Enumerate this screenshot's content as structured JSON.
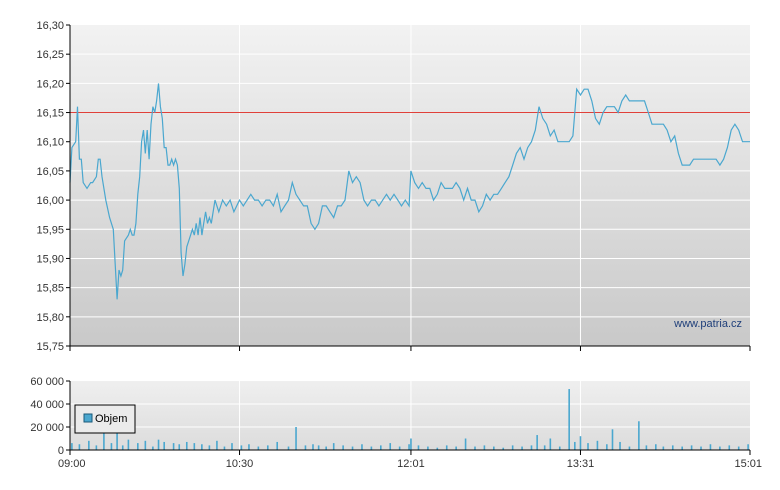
{
  "chart_data": [
    {
      "type": "line",
      "panel": "price",
      "ylim": [
        15.75,
        16.3
      ],
      "y_ticks": [
        "16,30",
        "16,25",
        "16,20",
        "16,15",
        "16,10",
        "16,05",
        "16,00",
        "15,95",
        "15,90",
        "15,85",
        "15,80",
        "15,75"
      ],
      "y_tick_values": [
        16.3,
        16.25,
        16.2,
        16.15,
        16.1,
        16.05,
        16.0,
        15.95,
        15.9,
        15.85,
        15.8,
        15.75
      ],
      "reference_line": {
        "value": 16.15,
        "color": "#e0403a"
      },
      "watermark": "www.patria.cz",
      "series": [
        {
          "color": "#4aa7cf",
          "points": [
            [
              "09:00",
              16.03
            ],
            [
              "09:01",
              16.09
            ],
            [
              "09:03",
              16.1
            ],
            [
              "09:04",
              16.16
            ],
            [
              "09:05",
              16.07
            ],
            [
              "09:06",
              16.07
            ],
            [
              "09:07",
              16.03
            ],
            [
              "09:09",
              16.02
            ],
            [
              "09:11",
              16.03
            ],
            [
              "09:12",
              16.03
            ],
            [
              "09:14",
              16.04
            ],
            [
              "09:15",
              16.07
            ],
            [
              "09:16",
              16.07
            ],
            [
              "09:17",
              16.04
            ],
            [
              "09:19",
              16.0
            ],
            [
              "09:21",
              15.97
            ],
            [
              "09:23",
              15.95
            ],
            [
              "09:24",
              15.89
            ],
            [
              "09:25",
              15.83
            ],
            [
              "09:26",
              15.88
            ],
            [
              "09:27",
              15.87
            ],
            [
              "09:28",
              15.88
            ],
            [
              "09:29",
              15.93
            ],
            [
              "09:31",
              15.94
            ],
            [
              "09:32",
              15.95
            ],
            [
              "09:33",
              15.94
            ],
            [
              "09:34",
              15.94
            ],
            [
              "09:35",
              15.96
            ],
            [
              "09:36",
              16.01
            ],
            [
              "09:37",
              16.04
            ],
            [
              "09:38",
              16.1
            ],
            [
              "09:39",
              16.12
            ],
            [
              "09:40",
              16.08
            ],
            [
              "09:41",
              16.12
            ],
            [
              "09:42",
              16.07
            ],
            [
              "09:43",
              16.13
            ],
            [
              "09:44",
              16.16
            ],
            [
              "09:45",
              16.15
            ],
            [
              "09:46",
              16.17
            ],
            [
              "09:47",
              16.2
            ],
            [
              "09:48",
              16.16
            ],
            [
              "09:49",
              16.14
            ],
            [
              "09:50",
              16.09
            ],
            [
              "09:51",
              16.09
            ],
            [
              "09:52",
              16.06
            ],
            [
              "09:53",
              16.06
            ],
            [
              "09:54",
              16.07
            ],
            [
              "09:55",
              16.06
            ],
            [
              "09:56",
              16.07
            ],
            [
              "09:57",
              16.06
            ],
            [
              "09:58",
              16.02
            ],
            [
              "09:59",
              15.91
            ],
            [
              "10:00",
              15.87
            ],
            [
              "10:01",
              15.89
            ],
            [
              "10:02",
              15.92
            ],
            [
              "10:03",
              15.93
            ],
            [
              "10:04",
              15.94
            ],
            [
              "10:05",
              15.95
            ],
            [
              "10:06",
              15.94
            ],
            [
              "10:07",
              15.96
            ],
            [
              "10:08",
              15.94
            ],
            [
              "10:09",
              15.97
            ],
            [
              "10:10",
              15.94
            ],
            [
              "10:11",
              15.96
            ],
            [
              "10:12",
              15.98
            ],
            [
              "10:13",
              15.96
            ],
            [
              "10:14",
              15.97
            ],
            [
              "10:15",
              15.96
            ],
            [
              "10:17",
              16.0
            ],
            [
              "10:19",
              15.98
            ],
            [
              "10:21",
              16.0
            ],
            [
              "10:23",
              15.99
            ],
            [
              "10:25",
              16.0
            ],
            [
              "10:27",
              15.98
            ],
            [
              "10:30",
              16.0
            ],
            [
              "10:32",
              15.99
            ],
            [
              "10:34",
              16.0
            ],
            [
              "10:36",
              16.01
            ],
            [
              "10:38",
              16.0
            ],
            [
              "10:40",
              16.0
            ],
            [
              "10:42",
              15.99
            ],
            [
              "10:44",
              16.0
            ],
            [
              "10:46",
              16.0
            ],
            [
              "10:48",
              15.99
            ],
            [
              "10:50",
              16.01
            ],
            [
              "10:52",
              15.98
            ],
            [
              "10:54",
              15.99
            ],
            [
              "10:56",
              16.0
            ],
            [
              "10:58",
              16.03
            ],
            [
              "11:00",
              16.01
            ],
            [
              "11:02",
              16.0
            ],
            [
              "11:04",
              15.99
            ],
            [
              "11:06",
              15.99
            ],
            [
              "11:08",
              15.96
            ],
            [
              "11:10",
              15.95
            ],
            [
              "11:12",
              15.96
            ],
            [
              "11:14",
              15.99
            ],
            [
              "11:16",
              15.99
            ],
            [
              "11:18",
              15.98
            ],
            [
              "11:20",
              15.97
            ],
            [
              "11:22",
              15.99
            ],
            [
              "11:24",
              15.99
            ],
            [
              "11:26",
              16.0
            ],
            [
              "11:28",
              16.05
            ],
            [
              "11:30",
              16.03
            ],
            [
              "11:32",
              16.04
            ],
            [
              "11:34",
              16.03
            ],
            [
              "11:36",
              16.0
            ],
            [
              "11:38",
              15.99
            ],
            [
              "11:40",
              16.0
            ],
            [
              "11:42",
              16.0
            ],
            [
              "11:44",
              15.99
            ],
            [
              "11:46",
              16.0
            ],
            [
              "11:48",
              16.01
            ],
            [
              "11:50",
              16.0
            ],
            [
              "11:52",
              16.01
            ],
            [
              "11:54",
              16.0
            ],
            [
              "11:56",
              15.99
            ],
            [
              "11:58",
              16.0
            ],
            [
              "12:00",
              15.99
            ],
            [
              "12:01",
              16.05
            ],
            [
              "12:03",
              16.03
            ],
            [
              "12:05",
              16.02
            ],
            [
              "12:07",
              16.03
            ],
            [
              "12:09",
              16.02
            ],
            [
              "12:11",
              16.02
            ],
            [
              "12:13",
              16.0
            ],
            [
              "12:15",
              16.01
            ],
            [
              "12:17",
              16.03
            ],
            [
              "12:19",
              16.02
            ],
            [
              "12:21",
              16.02
            ],
            [
              "12:23",
              16.02
            ],
            [
              "12:25",
              16.03
            ],
            [
              "12:27",
              16.02
            ],
            [
              "12:29",
              16.0
            ],
            [
              "12:31",
              16.02
            ],
            [
              "12:33",
              16.0
            ],
            [
              "12:35",
              16.0
            ],
            [
              "12:37",
              15.98
            ],
            [
              "12:39",
              15.99
            ],
            [
              "12:41",
              16.01
            ],
            [
              "12:43",
              16.0
            ],
            [
              "12:45",
              16.01
            ],
            [
              "12:47",
              16.01
            ],
            [
              "12:49",
              16.02
            ],
            [
              "12:51",
              16.03
            ],
            [
              "12:53",
              16.04
            ],
            [
              "12:55",
              16.06
            ],
            [
              "12:57",
              16.08
            ],
            [
              "12:59",
              16.09
            ],
            [
              "13:01",
              16.07
            ],
            [
              "13:03",
              16.09
            ],
            [
              "13:05",
              16.1
            ],
            [
              "13:07",
              16.12
            ],
            [
              "13:09",
              16.16
            ],
            [
              "13:11",
              16.14
            ],
            [
              "13:13",
              16.13
            ],
            [
              "13:15",
              16.11
            ],
            [
              "13:17",
              16.12
            ],
            [
              "13:19",
              16.1
            ],
            [
              "13:21",
              16.1
            ],
            [
              "13:23",
              16.1
            ],
            [
              "13:25",
              16.1
            ],
            [
              "13:27",
              16.11
            ],
            [
              "13:28",
              16.15
            ],
            [
              "13:29",
              16.19
            ],
            [
              "13:31",
              16.18
            ],
            [
              "13:33",
              16.19
            ],
            [
              "13:35",
              16.19
            ],
            [
              "13:37",
              16.17
            ],
            [
              "13:39",
              16.14
            ],
            [
              "13:41",
              16.13
            ],
            [
              "13:43",
              16.15
            ],
            [
              "13:45",
              16.16
            ],
            [
              "13:47",
              16.16
            ],
            [
              "13:49",
              16.16
            ],
            [
              "13:51",
              16.15
            ],
            [
              "13:53",
              16.17
            ],
            [
              "13:55",
              16.18
            ],
            [
              "13:57",
              16.17
            ],
            [
              "13:59",
              16.17
            ],
            [
              "14:01",
              16.17
            ],
            [
              "14:03",
              16.17
            ],
            [
              "14:05",
              16.17
            ],
            [
              "14:07",
              16.15
            ],
            [
              "14:09",
              16.13
            ],
            [
              "14:11",
              16.13
            ],
            [
              "14:13",
              16.13
            ],
            [
              "14:15",
              16.13
            ],
            [
              "14:17",
              16.12
            ],
            [
              "14:19",
              16.1
            ],
            [
              "14:21",
              16.11
            ],
            [
              "14:23",
              16.08
            ],
            [
              "14:25",
              16.06
            ],
            [
              "14:27",
              16.06
            ],
            [
              "14:29",
              16.06
            ],
            [
              "14:31",
              16.07
            ],
            [
              "14:33",
              16.07
            ],
            [
              "14:35",
              16.07
            ],
            [
              "14:37",
              16.07
            ],
            [
              "14:39",
              16.07
            ],
            [
              "14:41",
              16.07
            ],
            [
              "14:43",
              16.07
            ],
            [
              "14:45",
              16.06
            ],
            [
              "14:47",
              16.07
            ],
            [
              "14:49",
              16.09
            ],
            [
              "14:51",
              16.12
            ],
            [
              "14:53",
              16.13
            ],
            [
              "14:55",
              16.12
            ],
            [
              "14:57",
              16.1
            ],
            [
              "15:01",
              16.1
            ]
          ]
        }
      ]
    },
    {
      "type": "bar",
      "panel": "volume",
      "ylim": [
        0,
        60000
      ],
      "y_ticks": [
        "60 000",
        "40 000",
        "20 000",
        "0"
      ],
      "y_tick_values": [
        60000,
        40000,
        20000,
        0
      ],
      "x_ticks": [
        "09:00",
        "10:30",
        "12:01",
        "13:31",
        "15:01"
      ],
      "legend": {
        "label": "Objem",
        "placement": "top-left",
        "swatch_color": "#4aa7cf"
      },
      "bar_color": "#4aa7cf",
      "x": [
        "09:01",
        "09:05",
        "09:10",
        "09:14",
        "09:18",
        "09:22",
        "09:25",
        "09:28",
        "09:31",
        "09:36",
        "09:40",
        "09:44",
        "09:47",
        "09:50",
        "09:55",
        "09:58",
        "10:02",
        "10:06",
        "10:10",
        "10:14",
        "10:18",
        "10:22",
        "10:26",
        "10:31",
        "10:35",
        "10:40",
        "10:45",
        "10:50",
        "10:56",
        "11:00",
        "11:05",
        "11:09",
        "11:12",
        "11:16",
        "11:20",
        "11:25",
        "11:30",
        "11:35",
        "11:40",
        "11:45",
        "11:50",
        "11:55",
        "12:00",
        "12:01",
        "12:05",
        "12:10",
        "12:15",
        "12:20",
        "12:25",
        "12:30",
        "12:35",
        "12:40",
        "12:45",
        "12:50",
        "12:55",
        "13:00",
        "13:05",
        "13:08",
        "13:12",
        "13:15",
        "13:20",
        "13:25",
        "13:28",
        "13:31",
        "13:35",
        "13:40",
        "13:45",
        "13:48",
        "13:52",
        "13:57",
        "14:02",
        "14:06",
        "14:11",
        "14:15",
        "14:20",
        "14:25",
        "14:30",
        "14:35",
        "14:40",
        "14:45",
        "14:50",
        "14:55",
        "15:00"
      ],
      "values": [
        6000,
        5000,
        8000,
        4000,
        20000,
        6000,
        24000,
        4000,
        9000,
        6000,
        8000,
        3000,
        9000,
        7000,
        6000,
        5000,
        7000,
        6000,
        5000,
        4000,
        8000,
        3000,
        6000,
        4000,
        5000,
        3000,
        4000,
        7000,
        3000,
        20000,
        4000,
        5000,
        4000,
        3000,
        6000,
        4000,
        3000,
        5000,
        3000,
        4000,
        6000,
        3000,
        5000,
        10000,
        4000,
        3000,
        2000,
        4000,
        3000,
        10000,
        3000,
        4000,
        3000,
        2000,
        4000,
        3000,
        4000,
        13000,
        4000,
        10000,
        3000,
        53000,
        7000,
        12000,
        6000,
        8000,
        5000,
        18000,
        7000,
        3000,
        25000,
        4000,
        5000,
        3000,
        4000,
        3000,
        4000,
        3000,
        5000,
        3000,
        4000,
        3000,
        5000
      ]
    }
  ]
}
